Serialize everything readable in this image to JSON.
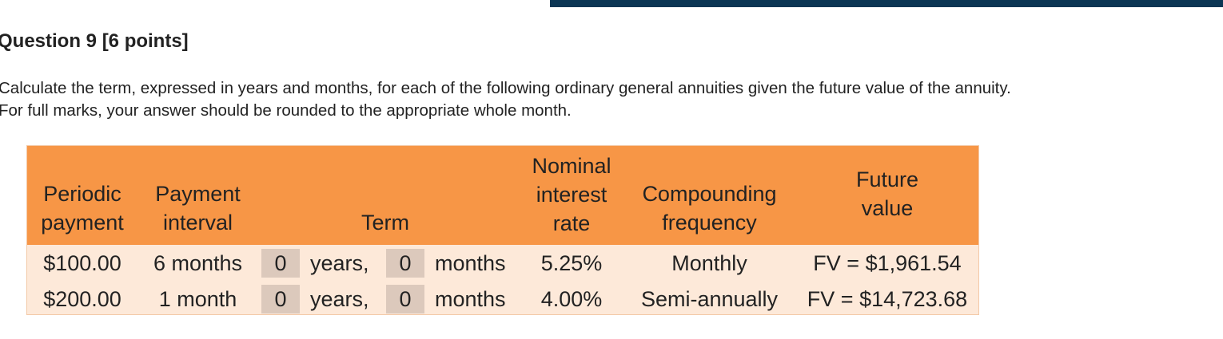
{
  "question": {
    "title": "Question 9 [6 points]",
    "text": [
      "Calculate the term, expressed in years and months, for each of the following ordinary general annuities given the future value of the annuity.",
      "For full marks, your answer should be rounded to the appropriate whole month."
    ]
  },
  "table": {
    "headers": {
      "payment": [
        "Periodic",
        "payment"
      ],
      "interval": [
        "Payment",
        "interval"
      ],
      "term": [
        "Term"
      ],
      "rate": [
        "Nominal",
        "interest",
        "rate"
      ],
      "frequency": [
        "Compounding",
        "frequency"
      ],
      "future_value": [
        "Future",
        "value"
      ]
    },
    "rows": [
      {
        "payment": "$100.00",
        "interval": "6 months",
        "years": "0",
        "years_label": "years,",
        "months": "0",
        "months_label": "months",
        "rate": "5.25%",
        "frequency": "Monthly",
        "future_value": "FV = $1,961.54"
      },
      {
        "payment": "$200.00",
        "interval": "1 month",
        "years": "0",
        "years_label": "years,",
        "months": "0",
        "months_label": "months",
        "rate": "4.00%",
        "frequency": "Semi-annually",
        "future_value": "FV = $14,723.68"
      }
    ]
  }
}
